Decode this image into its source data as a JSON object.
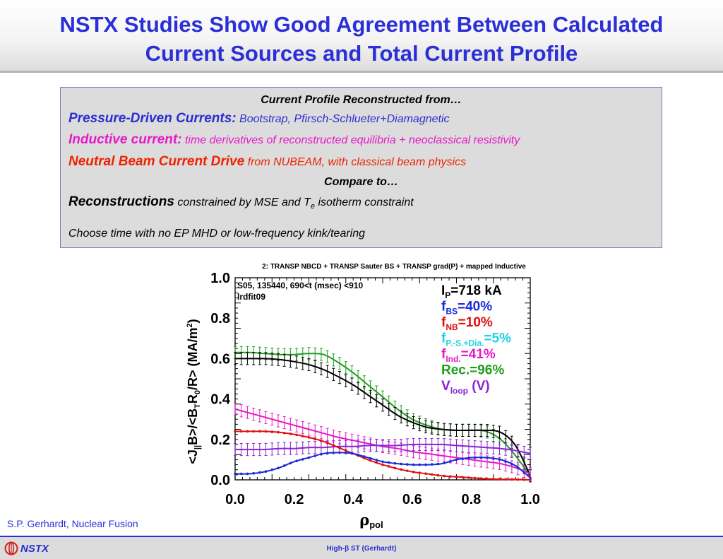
{
  "header": {
    "title_line1": "NSTX Studies Show Good Agreement Between Calculated",
    "title_line2": "Current Sources and Total Current Profile"
  },
  "infobox": {
    "heading": "Current Profile Reconstructed from…",
    "pressure_label": "Pressure-Driven Currents:",
    "pressure_detail": "Bootstrap, Pfirsch-Schlueter+Diamagnetic",
    "inductive_label": "Inductive current:",
    "inductive_detail": "time derivatives of reconstructed equilibria  + neoclassical resistivity",
    "nb_label": "Neutral Beam Current Drive",
    "nb_detail": "from NUBEAM, with classical beam physics",
    "compare": "Compare to…",
    "recon_label": "Reconstructions",
    "recon_detail_a": "constrained by MSE and T",
    "recon_detail_sub": "e",
    "recon_detail_b": " isotherm constraint",
    "choose": "Choose time with no EP MHD or low-frequency kink/tearing"
  },
  "chart_data": {
    "type": "line",
    "title": "2: TRANSP NBCD + TRANSP Sauter BS + TRANSP grad(P) + mapped Inductive",
    "info_line1": "S05, 135440, 690<t (msec) <910",
    "info_line2": "lrdfit09",
    "xlabel": "ρ",
    "xlabel_sub": "pol",
    "ylabel_a": "<J",
    "ylabel_sub1": "||",
    "ylabel_b": "B>/<B",
    "ylabel_sub2": "T",
    "ylabel_c": "R",
    "ylabel_sub3": "0",
    "ylabel_d": "/R> (MA/m",
    "ylabel_sup": "2",
    "ylabel_e": ")",
    "xlim": [
      0,
      1
    ],
    "ylim": [
      0,
      1
    ],
    "xticks": [
      "0.0",
      "0.2",
      "0.4",
      "0.6",
      "0.8",
      "1.0"
    ],
    "yticks": [
      "0.0",
      "0.2",
      "0.4",
      "0.6",
      "0.8",
      "1.0"
    ],
    "legend": [
      {
        "main": "I",
        "sub": "P",
        "rest": "=718 kA",
        "color": "#000000"
      },
      {
        "main": "f",
        "sub": "BS",
        "rest": "=40%",
        "color": "#1a2bd6"
      },
      {
        "main": "f",
        "sub": "NB",
        "rest": "=10%",
        "color": "#e01010"
      },
      {
        "main": "f",
        "sub": "P.-S.+Dia.",
        "rest": "=5%",
        "color": "#19d3e6"
      },
      {
        "main": "f",
        "sub": "Ind.",
        "rest": "=41%",
        "color": "#e619c8"
      },
      {
        "main": "Rec.=96%",
        "sub": "",
        "rest": "",
        "color": "#1f9e1f"
      },
      {
        "main": "V",
        "sub": "loop",
        "rest": " (V)",
        "color": "#8a22d6"
      }
    ],
    "series": [
      {
        "color": "#1f9e1f",
        "errorbars": true,
        "x": [
          0,
          0.05,
          0.1,
          0.15,
          0.2,
          0.25,
          0.3,
          0.35,
          0.4,
          0.45,
          0.5,
          0.55,
          0.6,
          0.65,
          0.7,
          0.75,
          0.8,
          0.85,
          0.9,
          0.95,
          1.0
        ],
        "y": [
          0.63,
          0.63,
          0.625,
          0.62,
          0.62,
          0.625,
          0.62,
          0.58,
          0.53,
          0.47,
          0.41,
          0.35,
          0.3,
          0.27,
          0.25,
          0.245,
          0.245,
          0.24,
          0.2,
          0.12,
          0.02
        ]
      },
      {
        "color": "#000000",
        "errorbars": true,
        "x": [
          0,
          0.05,
          0.1,
          0.15,
          0.2,
          0.25,
          0.3,
          0.35,
          0.4,
          0.45,
          0.5,
          0.55,
          0.6,
          0.65,
          0.7,
          0.75,
          0.8,
          0.85,
          0.9,
          0.95,
          1.0
        ],
        "y": [
          0.6,
          0.6,
          0.6,
          0.595,
          0.585,
          0.57,
          0.545,
          0.51,
          0.47,
          0.42,
          0.37,
          0.32,
          0.285,
          0.26,
          0.25,
          0.245,
          0.245,
          0.245,
          0.235,
          0.17,
          0.02
        ]
      },
      {
        "color": "#e619c8",
        "errorbars": true,
        "x": [
          0,
          0.05,
          0.1,
          0.15,
          0.2,
          0.25,
          0.3,
          0.35,
          0.4,
          0.45,
          0.5,
          0.55,
          0.6,
          0.65,
          0.7,
          0.75,
          0.8,
          0.85,
          0.9,
          0.95,
          1.0
        ],
        "y": [
          0.35,
          0.33,
          0.31,
          0.29,
          0.27,
          0.25,
          0.23,
          0.21,
          0.195,
          0.18,
          0.165,
          0.155,
          0.14,
          0.13,
          0.12,
          0.11,
          0.1,
          0.09,
          0.08,
          0.06,
          0.03
        ]
      },
      {
        "color": "#8a22d6",
        "errorbars": true,
        "x": [
          0,
          0.05,
          0.1,
          0.15,
          0.2,
          0.25,
          0.3,
          0.35,
          0.4,
          0.45,
          0.5,
          0.55,
          0.6,
          0.65,
          0.7,
          0.75,
          0.8,
          0.85,
          0.9,
          0.95,
          1.0
        ],
        "y": [
          0.15,
          0.15,
          0.15,
          0.155,
          0.155,
          0.16,
          0.16,
          0.165,
          0.165,
          0.17,
          0.17,
          0.17,
          0.175,
          0.175,
          0.175,
          0.17,
          0.165,
          0.16,
          0.155,
          0.145,
          0.13
        ]
      },
      {
        "color": "#e01010",
        "errorbars": false,
        "x": [
          0,
          0.05,
          0.1,
          0.15,
          0.2,
          0.25,
          0.3,
          0.35,
          0.4,
          0.45,
          0.5,
          0.55,
          0.6,
          0.65,
          0.7,
          0.75,
          0.8,
          0.85,
          0.9,
          0.95,
          1.0
        ],
        "y": [
          0.24,
          0.24,
          0.24,
          0.235,
          0.225,
          0.21,
          0.19,
          0.16,
          0.13,
          0.1,
          0.075,
          0.055,
          0.04,
          0.03,
          0.02,
          0.015,
          0.01,
          0.005,
          0.003,
          0.002,
          0.0
        ]
      },
      {
        "color": "#1a2bd6",
        "errorbars": false,
        "x": [
          0,
          0.05,
          0.1,
          0.15,
          0.2,
          0.25,
          0.3,
          0.35,
          0.4,
          0.45,
          0.5,
          0.55,
          0.6,
          0.65,
          0.7,
          0.75,
          0.8,
          0.85,
          0.9,
          0.95,
          1.0
        ],
        "y": [
          0.03,
          0.03,
          0.04,
          0.06,
          0.09,
          0.11,
          0.13,
          0.135,
          0.13,
          0.11,
          0.09,
          0.08,
          0.075,
          0.075,
          0.08,
          0.1,
          0.11,
          0.11,
          0.1,
          0.07,
          0.01
        ]
      }
    ]
  },
  "footer": {
    "credit": "S.P. Gerhardt, Nuclear Fusion",
    "logo_text": "NSTX",
    "center_a": "High-",
    "center_beta": "β",
    "center_b": " ST (Gerhardt)"
  }
}
